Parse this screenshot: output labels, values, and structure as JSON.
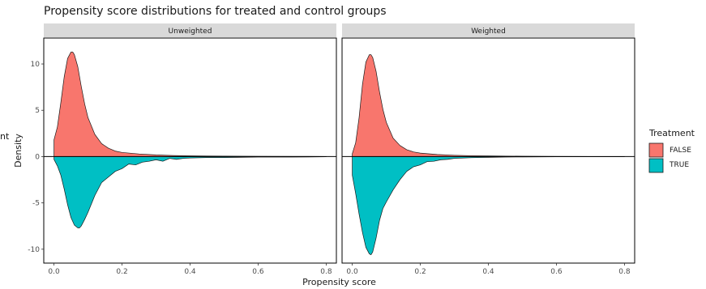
{
  "chart_data": {
    "type": "area",
    "title": "Propensity score distributions for treated and control groups",
    "xlabel": "Propensity score",
    "ylabel": "Density",
    "ylabel_clipped_fragment": "nt",
    "xlim": [
      -0.03,
      0.83
    ],
    "ylim": [
      -11.5,
      12.8
    ],
    "x_ticks": [
      "0.0",
      "0.2",
      "0.4",
      "0.6",
      "0.8"
    ],
    "x_tick_values": [
      0.0,
      0.2,
      0.4,
      0.6,
      0.8
    ],
    "y_ticks": [
      "10",
      "5",
      "0",
      "-5",
      "-10"
    ],
    "y_tick_values": [
      10,
      5,
      0,
      -5,
      -10
    ],
    "grid": false,
    "legend": {
      "title": "Treatment",
      "position": "right",
      "entries": [
        {
          "label": "FALSE",
          "color": "#F8766D"
        },
        {
          "label": "TRUE",
          "color": "#00BFC4"
        }
      ]
    },
    "panels": [
      {
        "strip": "Unweighted",
        "series": [
          {
            "name": "FALSE",
            "color": "#F8766D",
            "direction": "up",
            "x": [
              0.0,
              0.01,
              0.02,
              0.03,
              0.04,
              0.05,
              0.055,
              0.06,
              0.07,
              0.08,
              0.09,
              0.1,
              0.12,
              0.14,
              0.16,
              0.18,
              0.2,
              0.25,
              0.3,
              0.35,
              0.4,
              0.5,
              0.6,
              0.7,
              0.8
            ],
            "y": [
              1.8,
              3.2,
              5.8,
              8.6,
              10.6,
              11.3,
              11.3,
              11.0,
              9.7,
              7.6,
              5.7,
              4.2,
              2.4,
              1.4,
              0.9,
              0.6,
              0.45,
              0.28,
              0.18,
              0.12,
              0.08,
              0.05,
              0.03,
              0.02,
              0.01
            ]
          },
          {
            "name": "TRUE",
            "color": "#00BFC4",
            "direction": "down",
            "x": [
              0.0,
              0.01,
              0.02,
              0.03,
              0.04,
              0.05,
              0.06,
              0.07,
              0.075,
              0.08,
              0.09,
              0.1,
              0.12,
              0.14,
              0.16,
              0.18,
              0.2,
              0.22,
              0.24,
              0.26,
              0.28,
              0.3,
              0.32,
              0.34,
              0.36,
              0.38,
              0.4,
              0.45,
              0.5,
              0.6,
              0.7,
              0.8
            ],
            "y": [
              -0.3,
              -1.0,
              -2.0,
              -3.5,
              -5.2,
              -6.6,
              -7.4,
              -7.7,
              -7.7,
              -7.5,
              -6.8,
              -6.0,
              -4.2,
              -2.8,
              -2.2,
              -1.6,
              -1.3,
              -0.8,
              -0.9,
              -0.6,
              -0.5,
              -0.35,
              -0.5,
              -0.2,
              -0.3,
              -0.2,
              -0.15,
              -0.1,
              -0.1,
              -0.05,
              -0.05,
              -0.02
            ]
          }
        ]
      },
      {
        "strip": "Weighted",
        "series": [
          {
            "name": "FALSE",
            "color": "#F8766D",
            "direction": "up",
            "x": [
              0.0,
              0.01,
              0.02,
              0.03,
              0.04,
              0.05,
              0.055,
              0.06,
              0.07,
              0.08,
              0.09,
              0.1,
              0.12,
              0.14,
              0.16,
              0.18,
              0.2,
              0.25,
              0.3,
              0.35,
              0.4,
              0.5,
              0.6,
              0.7,
              0.8
            ],
            "y": [
              0.3,
              1.5,
              4.2,
              7.8,
              10.2,
              11.0,
              11.0,
              10.7,
              9.2,
              7.0,
              5.1,
              3.7,
              2.0,
              1.2,
              0.75,
              0.5,
              0.38,
              0.22,
              0.14,
              0.1,
              0.07,
              0.04,
              0.02,
              0.01,
              0.01
            ]
          },
          {
            "name": "TRUE",
            "color": "#00BFC4",
            "direction": "down",
            "x": [
              0.0,
              0.01,
              0.02,
              0.03,
              0.04,
              0.05,
              0.055,
              0.06,
              0.07,
              0.08,
              0.09,
              0.1,
              0.12,
              0.14,
              0.16,
              0.18,
              0.2,
              0.22,
              0.24,
              0.26,
              0.28,
              0.3,
              0.35,
              0.4,
              0.45,
              0.5,
              0.6,
              0.7,
              0.8
            ],
            "y": [
              -2.0,
              -4.0,
              -6.2,
              -8.2,
              -9.8,
              -10.5,
              -10.6,
              -10.3,
              -8.8,
              -6.9,
              -5.6,
              -4.9,
              -3.6,
              -2.5,
              -1.6,
              -1.1,
              -0.9,
              -0.55,
              -0.5,
              -0.35,
              -0.3,
              -0.2,
              -0.12,
              -0.08,
              -0.05,
              -0.04,
              -0.02,
              -0.01,
              -0.01
            ]
          }
        ]
      }
    ]
  }
}
